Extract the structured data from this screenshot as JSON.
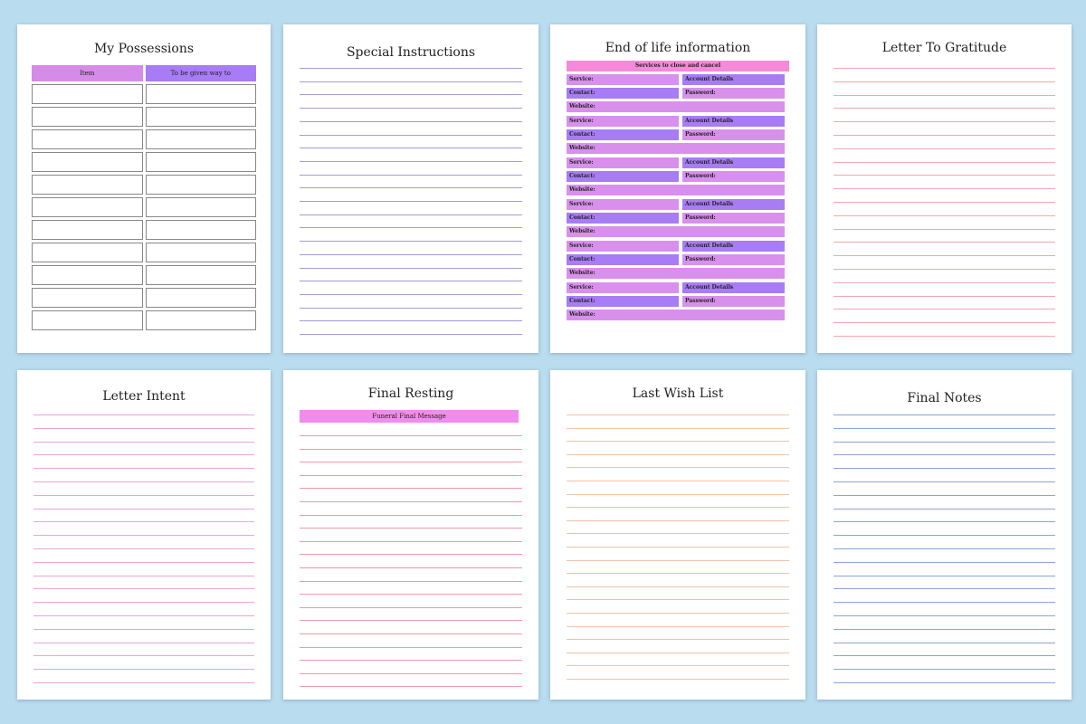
{
  "colors": {
    "background": "#b9dcef",
    "possessions_head_left": "#d48ce8",
    "possessions_head_right": "#a87cf5",
    "eol_banner": "#f58ad9",
    "eol_pink": "#d890ec",
    "eol_purple": "#a87cf5",
    "special_lines": "#a79ad6",
    "gratitude_lines": "#f1a7b4",
    "intent_lines": "#e9a6d8",
    "resting_lines": "#ee9aa8",
    "resting_banner": "#f08cee",
    "wish_lines": "#f3c2a6",
    "notes_lines": "#8aa6d4"
  },
  "pages": {
    "possessions": {
      "title": "My Possessions",
      "col_item": "Item",
      "col_given": "To be given way to",
      "rows": 11
    },
    "special": {
      "title": "Special Instructions"
    },
    "eol": {
      "title": "End of life information",
      "banner": "Services to close and cancel",
      "service_label": "Service:",
      "account_label": "Account Details",
      "contact_label": "Contact:",
      "password_label": "Password:",
      "website_label": "Website:",
      "groups": 6
    },
    "gratitude": {
      "title": "Letter To Gratitude"
    },
    "intent": {
      "title": "Letter Intent"
    },
    "resting": {
      "title": "Final Resting",
      "banner": "Funeral Final Message"
    },
    "wish": {
      "title": "Last Wish List"
    },
    "notes": {
      "title": "Final Notes"
    }
  }
}
